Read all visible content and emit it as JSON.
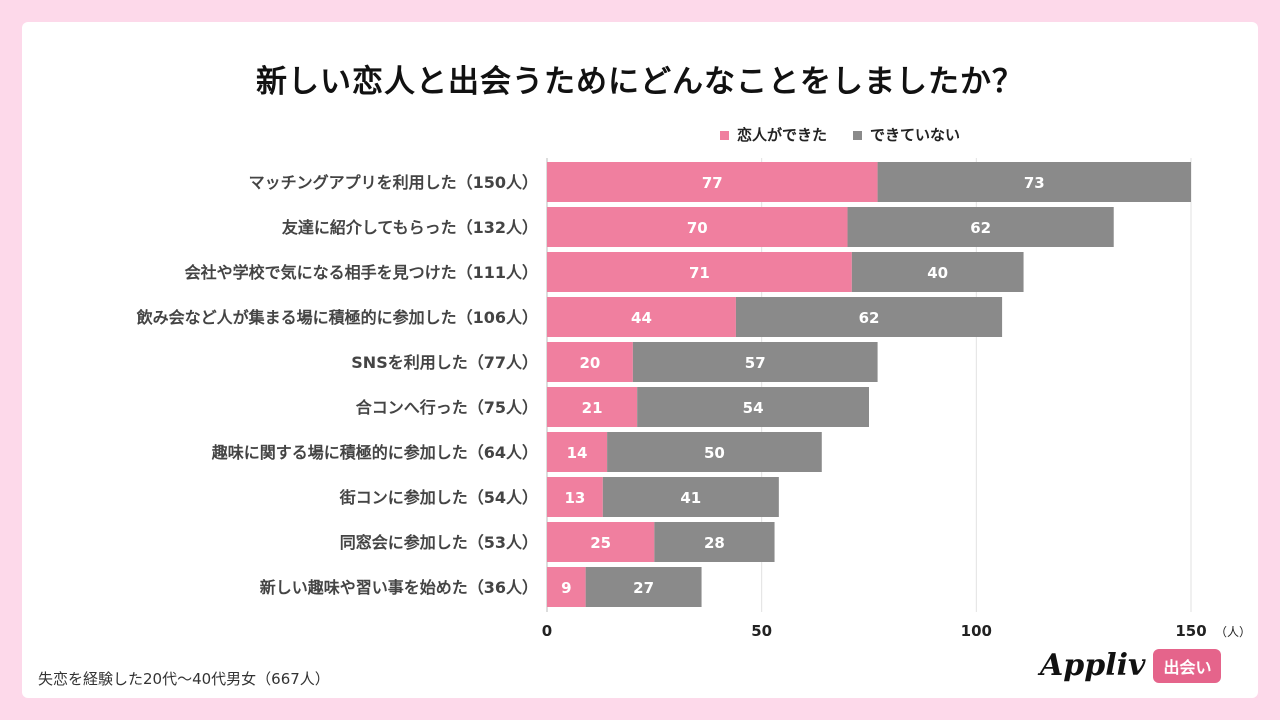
{
  "title": "新しい恋人と出会うためにどんなことをしましたか？",
  "footnote": "失恋を経験した20代〜40代男女（667人）",
  "logo": {
    "word": "Appliv",
    "badge": "出会い"
  },
  "chart_data": {
    "type": "bar",
    "orientation": "horizontal",
    "stacked": true,
    "title": "新しい恋人と出会うためにどんなことをしましたか？",
    "categories": [
      "マッチングアプリを利用した（150人）",
      "友達に紹介してもらった（132人）",
      "会社や学校で気になる相手を見つけた（111人）",
      "飲み会など人が集まる場に積極的に参加した（106人）",
      "SNSを利用した（77人）",
      "合コンへ行った（75人）",
      "趣味に関する場に積極的に参加した（64人）",
      "街コンに参加した（54人）",
      "同窓会に参加した（53人）",
      "新しい趣味や習い事を始めた（36人）"
    ],
    "series": [
      {
        "name": "恋人ができた",
        "color": "#f07f9f",
        "values": [
          77,
          70,
          71,
          44,
          20,
          21,
          14,
          13,
          25,
          9
        ]
      },
      {
        "name": "できていない",
        "color": "#8a8a8a",
        "values": [
          73,
          62,
          40,
          62,
          57,
          54,
          50,
          41,
          28,
          27
        ]
      }
    ],
    "xlim": [
      0,
      150
    ],
    "xticks": [
      "0",
      "50",
      "100",
      "150"
    ],
    "xunit": "（人）",
    "grid": true,
    "legend": "top-right"
  }
}
